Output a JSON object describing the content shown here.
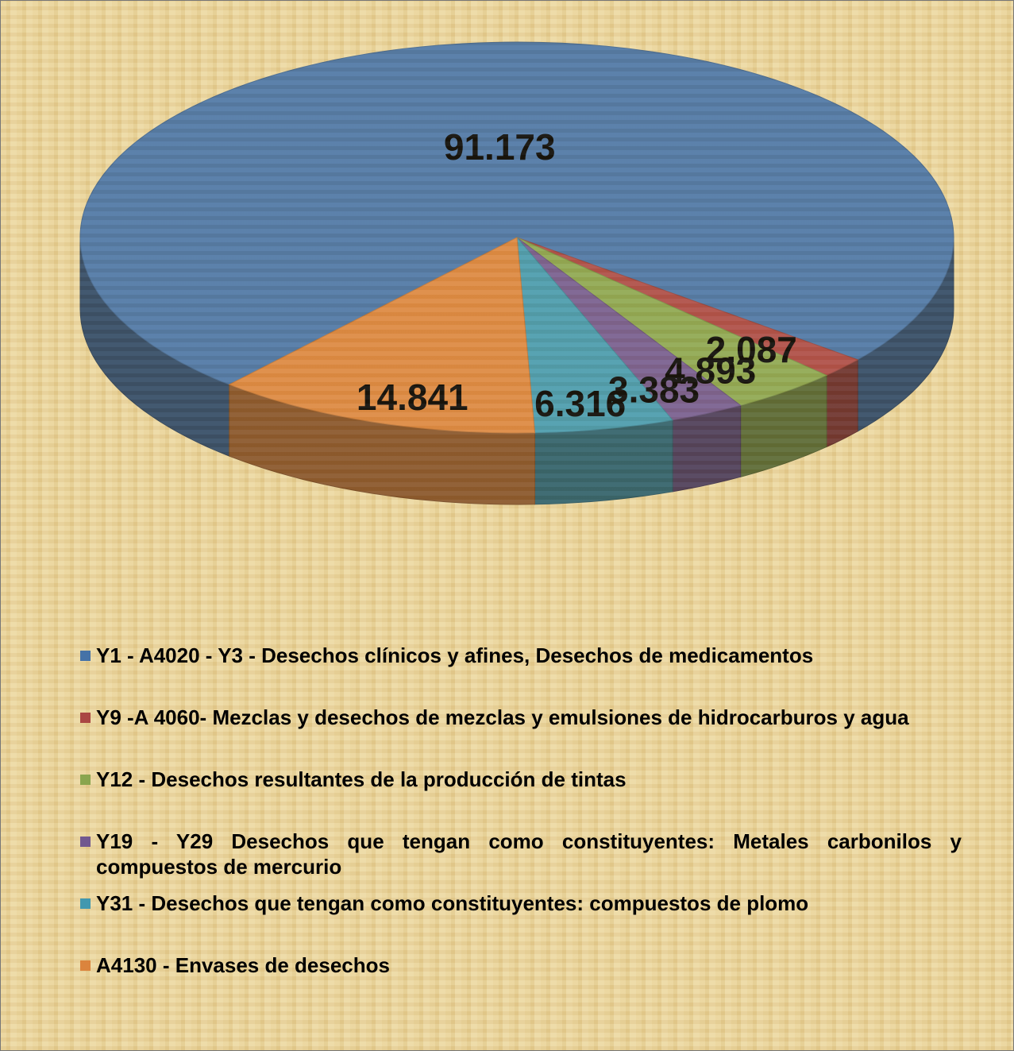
{
  "chart_data": {
    "type": "pie3d",
    "categories": [
      "Y1 - A4020  - Y3 - Desechos clínicos y afines,  Desechos de medicamentos",
      "Y9 -A 4060- Mezclas y desechos de mezclas y emulsiones de hidrocarburos y agua",
      "Y12 - Desechos resultantes de la producción de tintas",
      "Y19 - Y29 Desechos que tengan como constituyentes: Metales carbonilos y compuestos de mercurio",
      "Y31 - Desechos que tengan como constituyentes: compuestos de plomo",
      "A4130 - Envases de desechos"
    ],
    "values": [
      91.173,
      2.087,
      4.893,
      3.383,
      6.316,
      14.841
    ],
    "colors": [
      "#4572a7",
      "#aa4643",
      "#89a54e",
      "#71588f",
      "#4198af",
      "#db843d"
    ],
    "legend": "bottom"
  }
}
